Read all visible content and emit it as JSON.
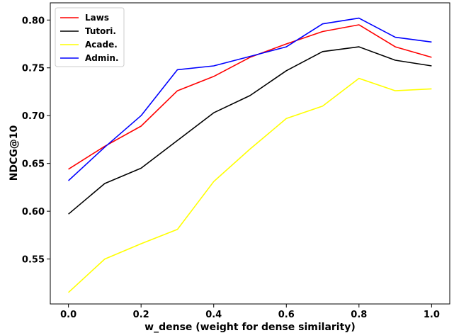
{
  "chart_data": {
    "type": "line",
    "title": "",
    "xlabel": "w_dense (weight for dense similarity)",
    "ylabel": "NDCG@10",
    "x": [
      0.0,
      0.1,
      0.2,
      0.3,
      0.4,
      0.5,
      0.6,
      0.7,
      0.8,
      0.9,
      1.0
    ],
    "xlim": [
      -0.05,
      1.05
    ],
    "ylim": [
      0.503,
      0.818
    ],
    "xticks": [
      "0.0",
      "0.2",
      "0.4",
      "0.6",
      "0.8",
      "1.0"
    ],
    "xtick_values": [
      0.0,
      0.2,
      0.4,
      0.6,
      0.8,
      1.0
    ],
    "yticks": [
      "0.55",
      "0.60",
      "0.65",
      "0.70",
      "0.75",
      "0.80"
    ],
    "ytick_values": [
      0.55,
      0.6,
      0.65,
      0.7,
      0.75,
      0.8
    ],
    "grid": false,
    "legend_position": "top-left",
    "series": [
      {
        "name": "Laws",
        "color": "#ff0000",
        "values": [
          0.644,
          0.668,
          0.689,
          0.726,
          0.741,
          0.761,
          0.775,
          0.788,
          0.795,
          0.772,
          0.761
        ]
      },
      {
        "name": "Tutori.",
        "color": "#000000",
        "values": [
          0.597,
          0.629,
          0.645,
          0.674,
          0.703,
          0.721,
          0.747,
          0.767,
          0.772,
          0.758,
          0.752
        ]
      },
      {
        "name": "Acade.",
        "color": "#ffff00",
        "values": [
          0.515,
          0.55,
          0.566,
          0.581,
          0.631,
          0.665,
          0.697,
          0.71,
          0.739,
          0.726,
          0.728
        ]
      },
      {
        "name": "Admin.",
        "color": "#0000ff",
        "values": [
          0.632,
          0.667,
          0.7,
          0.748,
          0.752,
          0.762,
          0.772,
          0.796,
          0.802,
          0.782,
          0.777
        ]
      }
    ]
  }
}
